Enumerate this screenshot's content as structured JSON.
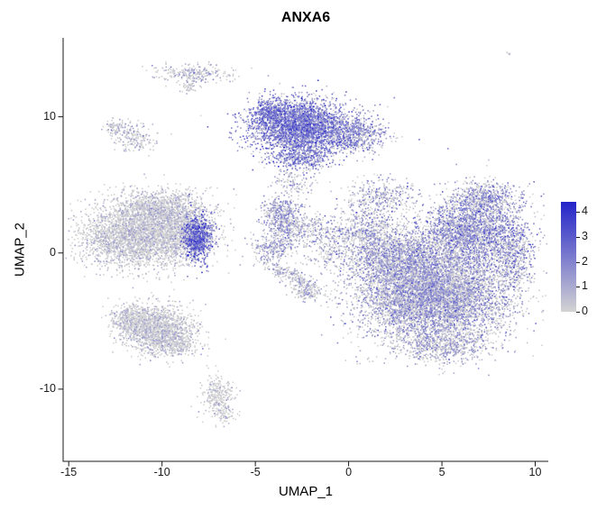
{
  "chart_data": {
    "type": "scatter",
    "title": "ANXA6",
    "xlabel": "UMAP_1",
    "ylabel": "UMAP_2",
    "xlim": [
      -15.3,
      10.7
    ],
    "ylim": [
      -15.3,
      15.8
    ],
    "x_ticks": [
      -15,
      -10,
      -5,
      0,
      5,
      10
    ],
    "y_ticks": [
      -10,
      0,
      10
    ],
    "grid": "off",
    "legend": {
      "position": "right",
      "ticks": [
        0,
        1,
        2,
        3,
        4
      ],
      "max": 4.4,
      "low_color": "#D3D3D3",
      "high_color": "#2323C9"
    },
    "clusters": [
      {
        "name": "top-strip",
        "cx": -8.3,
        "cy": 13.2,
        "sx": 1.0,
        "sy": 0.32,
        "n": 260,
        "p0": 0.45,
        "mean": 0.7,
        "sd": 0.7,
        "rot": 0
      },
      {
        "name": "top-strip-tail",
        "cx": -8.5,
        "cy": 12.3,
        "sx": 0.28,
        "sy": 0.25,
        "n": 45,
        "p0": 0.5,
        "mean": 0.5,
        "sd": 0.5,
        "rot": 0
      },
      {
        "name": "left-small-a",
        "cx": -12.4,
        "cy": 9.2,
        "sx": 0.38,
        "sy": 0.3,
        "n": 90,
        "p0": 0.5,
        "mean": 0.55,
        "sd": 0.6,
        "rot": 0
      },
      {
        "name": "left-small-b",
        "cx": -11.5,
        "cy": 8.4,
        "sx": 0.5,
        "sy": 0.45,
        "n": 180,
        "p0": 0.5,
        "mean": 0.55,
        "sd": 0.6,
        "rot": 0
      },
      {
        "name": "top-center-main",
        "cx": -2.6,
        "cy": 9.3,
        "sx": 1.35,
        "sy": 1.0,
        "n": 3200,
        "p0": 0.1,
        "mean": 1.7,
        "sd": 0.9,
        "rot": 0
      },
      {
        "name": "top-center-left-tip",
        "cx": -4.2,
        "cy": 10.3,
        "sx": 0.55,
        "sy": 0.5,
        "n": 300,
        "p0": 0.12,
        "mean": 1.6,
        "sd": 0.85,
        "rot": 0
      },
      {
        "name": "top-center-bottom",
        "cx": -2.6,
        "cy": 7.0,
        "sx": 0.85,
        "sy": 0.45,
        "n": 380,
        "p0": 0.12,
        "mean": 1.6,
        "sd": 0.85,
        "rot": 0
      },
      {
        "name": "top-center-right",
        "cx": 0.4,
        "cy": 8.7,
        "sx": 0.8,
        "sy": 0.65,
        "n": 600,
        "p0": 0.22,
        "mean": 1.3,
        "sd": 0.85,
        "rot": 0
      },
      {
        "name": "mid-upper-bits",
        "cx": -2.9,
        "cy": 5.1,
        "sx": 0.55,
        "sy": 0.5,
        "n": 120,
        "p0": 0.35,
        "mean": 0.9,
        "sd": 0.7,
        "rot": 0
      },
      {
        "name": "left-main",
        "cx": -11.3,
        "cy": 1.2,
        "sx": 1.5,
        "sy": 1.15,
        "n": 3000,
        "p0": 0.58,
        "mean": 0.45,
        "sd": 0.5,
        "rot": 0
      },
      {
        "name": "left-upper",
        "cx": -10.1,
        "cy": 3.2,
        "sx": 1.2,
        "sy": 0.7,
        "n": 1100,
        "p0": 0.58,
        "mean": 0.45,
        "sd": 0.5,
        "rot": 0
      },
      {
        "name": "left-right-edge",
        "cx": -8.7,
        "cy": 1.5,
        "sx": 0.7,
        "sy": 0.95,
        "n": 700,
        "p0": 0.55,
        "mean": 0.5,
        "sd": 0.55,
        "rot": 0
      },
      {
        "name": "purple-knot",
        "cx": -8.1,
        "cy": 1.1,
        "sx": 0.42,
        "sy": 0.85,
        "n": 780,
        "p0": 0.07,
        "mean": 2.2,
        "sd": 0.8,
        "rot": 0
      },
      {
        "name": "mid-blob-a",
        "cx": -3.6,
        "cy": 3.1,
        "sx": 0.55,
        "sy": 0.5,
        "n": 280,
        "p0": 0.25,
        "mean": 1.1,
        "sd": 0.8,
        "rot": 0
      },
      {
        "name": "mid-blob-b",
        "cx": -3.3,
        "cy": 1.9,
        "sx": 0.6,
        "sy": 0.55,
        "n": 320,
        "p0": 0.28,
        "mean": 1.05,
        "sd": 0.8,
        "rot": 0
      },
      {
        "name": "mid-blob-c",
        "cx": -3.9,
        "cy": 0.4,
        "sx": 0.55,
        "sy": 0.45,
        "n": 240,
        "p0": 0.32,
        "mean": 0.95,
        "sd": 0.75,
        "rot": 0
      },
      {
        "name": "mid-right-bits",
        "cx": -1.8,
        "cy": 1.8,
        "sx": 0.6,
        "sy": 0.5,
        "n": 150,
        "p0": 0.33,
        "mean": 0.9,
        "sd": 0.75,
        "rot": 0
      },
      {
        "name": "mid-bridge",
        "cx": -0.9,
        "cy": 0.3,
        "sx": 0.95,
        "sy": 0.8,
        "n": 220,
        "p0": 0.4,
        "mean": 0.8,
        "sd": 0.75,
        "rot": 0
      },
      {
        "name": "mid-lower-trail",
        "cx": -3.2,
        "cy": -1.6,
        "sx": 0.95,
        "sy": 0.3,
        "n": 260,
        "p0": 0.42,
        "mean": 0.75,
        "sd": 0.65,
        "rot": -38
      },
      {
        "name": "mid-lower-blob",
        "cx": -2.2,
        "cy": -2.9,
        "sx": 0.45,
        "sy": 0.35,
        "n": 130,
        "p0": 0.42,
        "mean": 0.75,
        "sd": 0.65,
        "rot": 0
      },
      {
        "name": "bottomleft-main",
        "cx": -10.3,
        "cy": -5.6,
        "sx": 1.0,
        "sy": 0.85,
        "n": 1500,
        "p0": 0.6,
        "mean": 0.45,
        "sd": 0.5,
        "rot": 0
      },
      {
        "name": "bottomleft-west",
        "cx": -11.6,
        "cy": -4.9,
        "sx": 0.6,
        "sy": 0.55,
        "n": 420,
        "p0": 0.6,
        "mean": 0.45,
        "sd": 0.5,
        "rot": 0
      },
      {
        "name": "bottomleft-tail",
        "cx": -9.2,
        "cy": -6.7,
        "sx": 0.6,
        "sy": 0.4,
        "n": 260,
        "p0": 0.6,
        "mean": 0.45,
        "sd": 0.5,
        "rot": -20
      },
      {
        "name": "bottom-small",
        "cx": -7.0,
        "cy": -10.5,
        "sx": 0.42,
        "sy": 0.75,
        "n": 280,
        "p0": 0.6,
        "mean": 0.4,
        "sd": 0.5,
        "rot": 0
      },
      {
        "name": "bottom-small-tail",
        "cx": -6.6,
        "cy": -11.9,
        "sx": 0.25,
        "sy": 0.3,
        "n": 60,
        "p0": 0.6,
        "mean": 0.4,
        "sd": 0.5,
        "rot": 0
      },
      {
        "name": "right-main",
        "cx": 4.6,
        "cy": -3.2,
        "sx": 2.0,
        "sy": 1.7,
        "n": 6500,
        "p0": 0.33,
        "mean": 0.95,
        "sd": 0.8,
        "rot": 0
      },
      {
        "name": "right-upper",
        "cx": 6.6,
        "cy": 1.6,
        "sx": 1.4,
        "sy": 1.3,
        "n": 2600,
        "p0": 0.25,
        "mean": 1.2,
        "sd": 0.9,
        "rot": 0
      },
      {
        "name": "right-top-lobe",
        "cx": 7.4,
        "cy": 4.1,
        "sx": 0.9,
        "sy": 0.55,
        "n": 500,
        "p0": 0.28,
        "mean": 1.1,
        "sd": 0.85,
        "rot": 0
      },
      {
        "name": "right-mid-left",
        "cx": 2.6,
        "cy": -0.3,
        "sx": 1.4,
        "sy": 1.2,
        "n": 1800,
        "p0": 0.33,
        "mean": 1.0,
        "sd": 0.8,
        "rot": 0
      },
      {
        "name": "right-left-arm",
        "cx": 0.8,
        "cy": 1.6,
        "sx": 0.9,
        "sy": 1.0,
        "n": 500,
        "p0": 0.35,
        "mean": 1.0,
        "sd": 0.8,
        "rot": 0
      },
      {
        "name": "right-top-arm",
        "cx": 1.8,
        "cy": 4.2,
        "sx": 0.9,
        "sy": 0.65,
        "n": 330,
        "p0": 0.35,
        "mean": 1.0,
        "sd": 0.8,
        "rot": 0
      },
      {
        "name": "right-far-edge",
        "cx": 8.9,
        "cy": -0.5,
        "sx": 0.5,
        "sy": 1.2,
        "n": 450,
        "p0": 0.3,
        "mean": 1.1,
        "sd": 0.85,
        "rot": 0
      },
      {
        "name": "right-bottom-tip",
        "cx": 5.0,
        "cy": -6.8,
        "sx": 1.2,
        "sy": 0.6,
        "n": 600,
        "p0": 0.4,
        "mean": 0.8,
        "sd": 0.7,
        "rot": 0
      },
      {
        "name": "top-right-speck",
        "cx": 8.6,
        "cy": 14.6,
        "sx": 0.12,
        "sy": 0.12,
        "n": 5,
        "p0": 0.5,
        "mean": 0.5,
        "sd": 0.5,
        "rot": 0
      }
    ]
  }
}
